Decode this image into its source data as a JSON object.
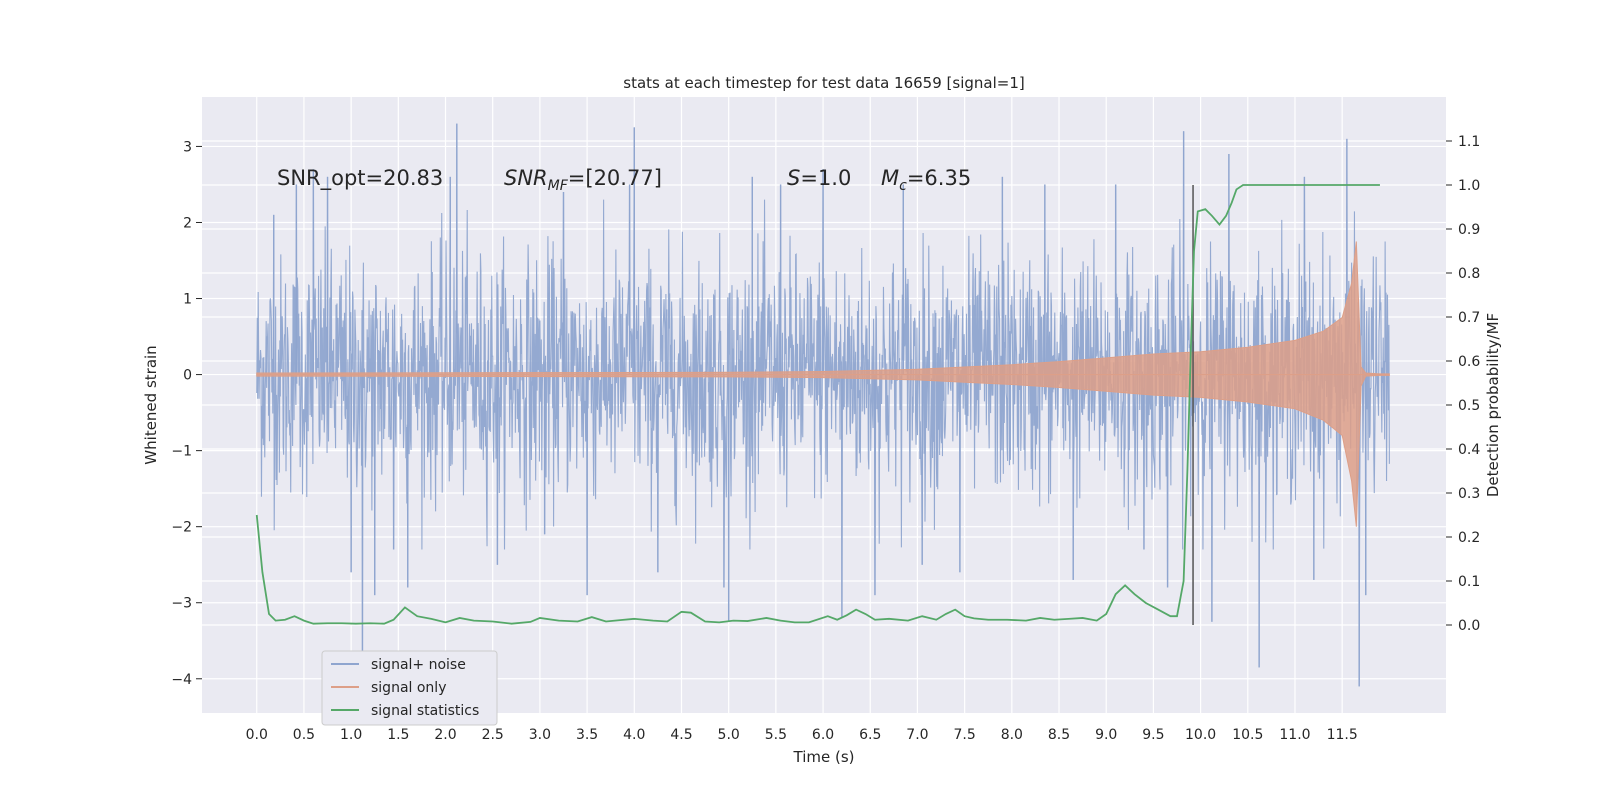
{
  "chart_data": {
    "type": "line",
    "title": "stats at each timestep for test data 16659 [signal=1]",
    "xlabel": "Time (s)",
    "ylabel": "Whitened strain",
    "y2label": "Detection probability/MF",
    "xlim": [
      -0.58,
      12.6
    ],
    "ylim": [
      -4.45,
      3.65
    ],
    "y2lim": [
      -0.2,
      1.2
    ],
    "x_ticks": [
      0.0,
      0.5,
      1.0,
      1.5,
      2.0,
      2.5,
      3.0,
      3.5,
      4.0,
      4.5,
      5.0,
      5.5,
      6.0,
      6.5,
      7.0,
      7.5,
      8.0,
      8.5,
      9.0,
      9.5,
      10.0,
      10.5,
      11.0,
      11.5
    ],
    "x_tick_labels": [
      "0.0",
      "0.5",
      "1.0",
      "1.5",
      "2.0",
      "2.5",
      "3.0",
      "3.5",
      "4.0",
      "4.5",
      "5.0",
      "5.5",
      "6.0",
      "6.5",
      "7.0",
      "7.5",
      "8.0",
      "8.5",
      "9.0",
      "9.5",
      "10.0",
      "10.5",
      "11.0",
      "11.5"
    ],
    "y_ticks": [
      -4,
      -3,
      -2,
      -1,
      0,
      1,
      2,
      3
    ],
    "y_tick_labels": [
      "−4",
      "−3",
      "−2",
      "−1",
      "0",
      "1",
      "2",
      "3"
    ],
    "y2_ticks": [
      0.0,
      0.1,
      0.2,
      0.3,
      0.4,
      0.5,
      0.6,
      0.7,
      0.8,
      0.9,
      1.0,
      1.1
    ],
    "y2_tick_labels": [
      "0.0",
      "0.1",
      "0.2",
      "0.3",
      "0.4",
      "0.5",
      "0.6",
      "0.7",
      "0.8",
      "0.9",
      "1.0",
      "1.1"
    ],
    "grid": true,
    "legend_position": "lower-left",
    "annotations": {
      "snr_opt": "SNR_opt=20.83",
      "snr_mf_main": "SNR",
      "snr_mf_sub": "MF",
      "snr_mf_value": "=[20.77]",
      "s_var": "S",
      "s_value": "=1.0",
      "mc_var": "M",
      "mc_sub": "c",
      "mc_value": "=6.35"
    },
    "detection_marker_x": 9.92,
    "detection_marker_range": [
      0.0,
      1.0
    ],
    "series": [
      {
        "name": "signal+ noise",
        "color": "#8fa5cf",
        "kind": "noise",
        "x_range": [
          0.0,
          12.0
        ],
        "spread": 1.0,
        "spikes": [
          {
            "x": 0.18,
            "y": 2.1
          },
          {
            "x": 0.42,
            "y": 2.5
          },
          {
            "x": 0.6,
            "y": 2.7
          },
          {
            "x": 0.75,
            "y": 2.6
          },
          {
            "x": 1.0,
            "y": -2.6
          },
          {
            "x": 1.12,
            "y": -3.7
          },
          {
            "x": 1.25,
            "y": -2.9
          },
          {
            "x": 1.45,
            "y": -2.3
          },
          {
            "x": 1.6,
            "y": -2.8
          },
          {
            "x": 2.05,
            "y": 2.6
          },
          {
            "x": 2.12,
            "y": 3.3
          },
          {
            "x": 2.55,
            "y": -2.5
          },
          {
            "x": 3.05,
            "y": -2.1
          },
          {
            "x": 3.25,
            "y": 2.4
          },
          {
            "x": 3.5,
            "y": -2.9
          },
          {
            "x": 3.95,
            "y": 2.5
          },
          {
            "x": 4.0,
            "y": 3.25
          },
          {
            "x": 4.25,
            "y": -2.6
          },
          {
            "x": 4.95,
            "y": -2.8
          },
          {
            "x": 5.0,
            "y": -3.25
          },
          {
            "x": 5.25,
            "y": 2.6
          },
          {
            "x": 5.55,
            "y": 2.5
          },
          {
            "x": 6.0,
            "y": 2.7
          },
          {
            "x": 6.2,
            "y": -3.2
          },
          {
            "x": 6.55,
            "y": -2.9
          },
          {
            "x": 6.85,
            "y": 2.5
          },
          {
            "x": 7.05,
            "y": -2.5
          },
          {
            "x": 7.45,
            "y": -2.6
          },
          {
            "x": 7.9,
            "y": 2.6
          },
          {
            "x": 8.35,
            "y": 2.5
          },
          {
            "x": 8.65,
            "y": -2.7
          },
          {
            "x": 9.1,
            "y": 2.5
          },
          {
            "x": 9.4,
            "y": -2.3
          },
          {
            "x": 9.65,
            "y": -2.8
          },
          {
            "x": 9.82,
            "y": 3.2
          },
          {
            "x": 10.12,
            "y": -3.25
          },
          {
            "x": 10.3,
            "y": 2.9
          },
          {
            "x": 10.62,
            "y": -3.85
          },
          {
            "x": 11.1,
            "y": 2.6
          },
          {
            "x": 11.2,
            "y": -2.7
          },
          {
            "x": 11.55,
            "y": 3.1
          },
          {
            "x": 11.68,
            "y": -4.1
          },
          {
            "x": 11.75,
            "y": -2.9
          }
        ]
      },
      {
        "name": "signal only",
        "color": "#dd9f88",
        "kind": "chirp",
        "x": [
          0.0,
          5.0,
          6.0,
          7.0,
          7.5,
          8.0,
          8.5,
          9.0,
          9.5,
          10.0,
          10.5,
          11.0,
          11.3,
          11.5,
          11.6,
          11.65,
          11.7,
          11.75,
          11.9,
          12.0
        ],
        "upper": [
          0.02,
          0.03,
          0.04,
          0.07,
          0.1,
          0.13,
          0.17,
          0.22,
          0.27,
          0.3,
          0.36,
          0.45,
          0.57,
          0.75,
          1.2,
          1.75,
          0.1,
          0.02,
          0.01,
          0.01
        ],
        "lower": [
          -0.02,
          -0.03,
          -0.04,
          -0.07,
          -0.1,
          -0.13,
          -0.17,
          -0.22,
          -0.27,
          -0.3,
          -0.36,
          -0.45,
          -0.6,
          -0.8,
          -1.4,
          -2.0,
          -0.15,
          -0.02,
          -0.01,
          -0.01
        ]
      },
      {
        "name": "signal statistics",
        "color": "#55a868",
        "kind": "line",
        "axis": "right",
        "x": [
          0.0,
          0.06,
          0.13,
          0.2,
          0.3,
          0.4,
          0.5,
          0.6,
          0.75,
          0.9,
          1.05,
          1.2,
          1.35,
          1.45,
          1.57,
          1.7,
          1.85,
          2.0,
          2.15,
          2.3,
          2.5,
          2.7,
          2.9,
          3.0,
          3.2,
          3.4,
          3.55,
          3.7,
          3.85,
          4.0,
          4.2,
          4.35,
          4.5,
          4.6,
          4.75,
          4.9,
          5.05,
          5.2,
          5.4,
          5.55,
          5.7,
          5.85,
          6.05,
          6.15,
          6.25,
          6.35,
          6.45,
          6.55,
          6.7,
          6.9,
          7.05,
          7.2,
          7.3,
          7.4,
          7.5,
          7.6,
          7.75,
          7.95,
          8.15,
          8.3,
          8.45,
          8.6,
          8.75,
          8.9,
          9.0,
          9.1,
          9.2,
          9.3,
          9.42,
          9.55,
          9.68,
          9.75,
          9.82,
          9.86,
          9.9,
          9.93,
          9.97,
          10.05,
          10.12,
          10.2,
          10.27,
          10.33,
          10.38,
          10.45,
          10.55,
          10.7,
          10.9,
          11.1,
          11.3,
          11.5,
          11.7,
          11.9
        ],
        "y": [
          0.25,
          0.12,
          0.025,
          0.01,
          0.012,
          0.02,
          0.01,
          0.003,
          0.004,
          0.004,
          0.003,
          0.004,
          0.003,
          0.012,
          0.04,
          0.02,
          0.014,
          0.006,
          0.016,
          0.01,
          0.008,
          0.003,
          0.007,
          0.016,
          0.01,
          0.008,
          0.018,
          0.008,
          0.011,
          0.014,
          0.01,
          0.008,
          0.03,
          0.028,
          0.008,
          0.006,
          0.01,
          0.009,
          0.016,
          0.01,
          0.006,
          0.006,
          0.02,
          0.012,
          0.022,
          0.035,
          0.025,
          0.012,
          0.014,
          0.01,
          0.02,
          0.012,
          0.025,
          0.035,
          0.02,
          0.015,
          0.012,
          0.012,
          0.01,
          0.016,
          0.012,
          0.014,
          0.016,
          0.01,
          0.025,
          0.07,
          0.09,
          0.07,
          0.05,
          0.035,
          0.02,
          0.02,
          0.1,
          0.35,
          0.65,
          0.85,
          0.94,
          0.945,
          0.93,
          0.91,
          0.93,
          0.96,
          0.99,
          1.0,
          1.0,
          1.0,
          1.0,
          1.0,
          1.0,
          1.0,
          1.0,
          1.0
        ]
      }
    ]
  }
}
